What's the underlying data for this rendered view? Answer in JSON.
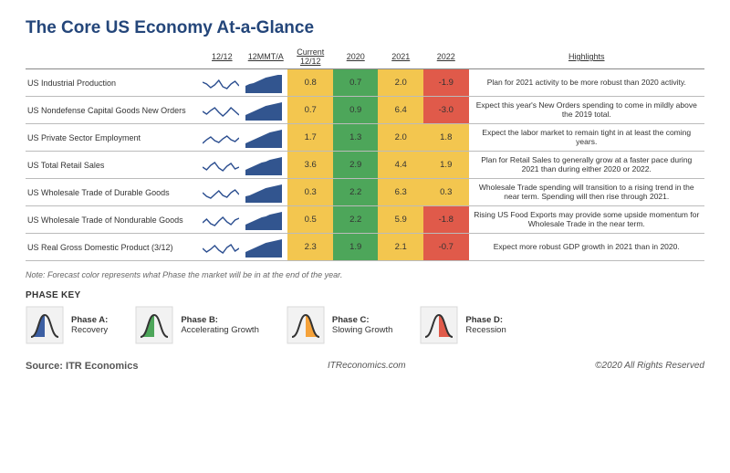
{
  "title": "The Core US Economy At-a-Glance",
  "columns": {
    "indicator": "",
    "c1212": "12/12",
    "c12mmta": "12MMT/A",
    "current": "Current 12/12",
    "y2020": "2020",
    "y2021": "2021",
    "y2022": "2022",
    "highlights": "Highlights"
  },
  "colors": {
    "yellow": "#f3c64f",
    "green": "#4da65a",
    "red": "#e05a4a",
    "orange": "#f5a23a",
    "blue": "#3c5fa3",
    "sparkline": "#2a4d8f",
    "sparkfill": "#32558f",
    "border": "#888888",
    "iconbg": "#f2f2f2",
    "iconborder": "#d9d9d9",
    "curve": "#333333"
  },
  "rows": [
    {
      "indicator": "US Industrial Production",
      "line": [
        12,
        10,
        6,
        9,
        14,
        7,
        5,
        10,
        13,
        8
      ],
      "area": [
        8,
        10,
        11,
        13,
        15,
        17,
        18,
        19,
        20,
        20
      ],
      "current": {
        "v": "0.8",
        "c": "yellow"
      },
      "y2020": {
        "v": "0.7",
        "c": "green"
      },
      "y2021": {
        "v": "2.0",
        "c": "yellow"
      },
      "y2022": {
        "v": "-1.9",
        "c": "red"
      },
      "hl": "Plan for 2021 activity to be more robust than 2020 activity."
    },
    {
      "indicator": "US Nondefense Capital Goods New Orders",
      "line": [
        10,
        7,
        11,
        14,
        9,
        5,
        9,
        14,
        10,
        6
      ],
      "area": [
        6,
        8,
        10,
        12,
        14,
        16,
        17,
        18,
        19,
        20
      ],
      "current": {
        "v": "0.7",
        "c": "yellow"
      },
      "y2020": {
        "v": "0.9",
        "c": "green"
      },
      "y2021": {
        "v": "6.4",
        "c": "yellow"
      },
      "y2022": {
        "v": "-3.0",
        "c": "red"
      },
      "hl": "Expect this year's New Orders spending to come in mildly above the 2019 total."
    },
    {
      "indicator": "US Private Sector Employment",
      "line": [
        5,
        9,
        12,
        8,
        6,
        10,
        13,
        9,
        7,
        11
      ],
      "area": [
        5,
        7,
        9,
        11,
        13,
        15,
        17,
        18,
        19,
        20
      ],
      "current": {
        "v": "1.7",
        "c": "yellow"
      },
      "y2020": {
        "v": "1.3",
        "c": "green"
      },
      "y2021": {
        "v": "2.0",
        "c": "yellow"
      },
      "y2022": {
        "v": "1.8",
        "c": "yellow"
      },
      "hl": "Expect the labor market to remain tight in at least the coming years."
    },
    {
      "indicator": "US Total Retail Sales",
      "line": [
        9,
        6,
        11,
        14,
        8,
        5,
        10,
        13,
        7,
        9
      ],
      "area": [
        6,
        8,
        10,
        12,
        14,
        15,
        17,
        18,
        19,
        20
      ],
      "current": {
        "v": "3.6",
        "c": "yellow"
      },
      "y2020": {
        "v": "2.9",
        "c": "green"
      },
      "y2021": {
        "v": "4.4",
        "c": "yellow"
      },
      "y2022": {
        "v": "1.9",
        "c": "yellow"
      },
      "hl": "Plan for Retail Sales to generally grow at a faster pace during 2021 than during either 2020 or 2022."
    },
    {
      "indicator": "US Wholesale Trade of Durable Goods",
      "line": [
        11,
        7,
        5,
        9,
        13,
        8,
        6,
        11,
        14,
        9
      ],
      "area": [
        7,
        8,
        10,
        12,
        14,
        16,
        17,
        18,
        19,
        20
      ],
      "current": {
        "v": "0.3",
        "c": "yellow"
      },
      "y2020": {
        "v": "2.2",
        "c": "green"
      },
      "y2021": {
        "v": "6.3",
        "c": "yellow"
      },
      "y2022": {
        "v": "0.3",
        "c": "yellow"
      },
      "hl": "Wholesale Trade spending will transition to a rising trend in the near term. Spending will then rise through 2021."
    },
    {
      "indicator": "US Wholesale Trade of Nondurable Goods",
      "line": [
        8,
        12,
        7,
        5,
        10,
        14,
        9,
        6,
        11,
        13
      ],
      "area": [
        6,
        8,
        10,
        12,
        14,
        15,
        17,
        18,
        19,
        20
      ],
      "current": {
        "v": "0.5",
        "c": "yellow"
      },
      "y2020": {
        "v": "2.2",
        "c": "green"
      },
      "y2021": {
        "v": "5.9",
        "c": "yellow"
      },
      "y2022": {
        "v": "-1.8",
        "c": "red"
      },
      "hl": "Rising US Food Exports may provide some upside momentum for Wholesale Trade in the near term."
    },
    {
      "indicator": "US Real Gross Domestic Product (3/12)",
      "line": [
        10,
        6,
        9,
        13,
        8,
        5,
        11,
        14,
        7,
        10
      ],
      "area": [
        6,
        8,
        10,
        12,
        14,
        16,
        17,
        18,
        19,
        20
      ],
      "current": {
        "v": "2.3",
        "c": "yellow"
      },
      "y2020": {
        "v": "1.9",
        "c": "green"
      },
      "y2021": {
        "v": "2.1",
        "c": "yellow"
      },
      "y2022": {
        "v": "-0.7",
        "c": "red"
      },
      "hl": "Expect more robust GDP growth in 2021 than in 2020."
    }
  ],
  "note": "Note: Forecast color represents what Phase the market will be in at the end of the year.",
  "phaseKeyTitle": "PHASE KEY",
  "phases": [
    {
      "letter": "Phase A:",
      "name": "Recovery",
      "color": "blue",
      "side": "left"
    },
    {
      "letter": "Phase B:",
      "name": "Accelerating Growth",
      "color": "green",
      "side": "left"
    },
    {
      "letter": "Phase C:",
      "name": "Slowing Growth",
      "color": "orange",
      "side": "right"
    },
    {
      "letter": "Phase D:",
      "name": "Recession",
      "color": "red",
      "side": "right"
    }
  ],
  "footer": {
    "source": "Source: ITR Economics",
    "site": "ITReconomics.com",
    "copyright": "©2020 All Rights Reserved"
  }
}
